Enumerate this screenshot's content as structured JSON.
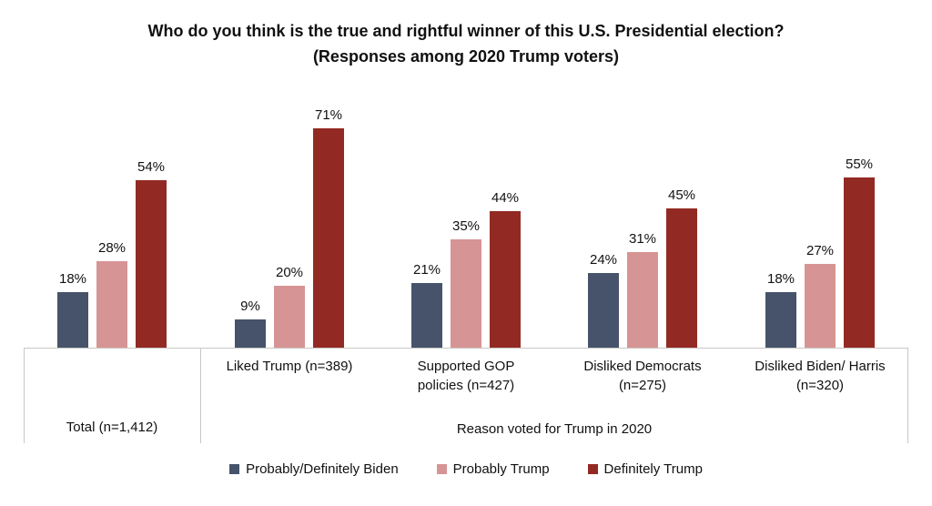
{
  "chart_data": {
    "type": "bar",
    "title": "Who do you think is the true and rightful winner of this U.S. Presidential election? (Responses among 2020 Trump voters)",
    "categories": [
      "Total (n=1,412)",
      "Liked Trump (n=389)",
      "Supported GOP policies (n=427)",
      "Disliked Democrats (n=275)",
      "Disliked Biden/ Harris (n=320)"
    ],
    "series": [
      {
        "name": "Probably/Definitely Biden",
        "color": "#46536A",
        "values": [
          18,
          9,
          21,
          24,
          18
        ]
      },
      {
        "name": "Probably Trump",
        "color": "#D79494",
        "values": [
          28,
          20,
          35,
          31,
          27
        ]
      },
      {
        "name": "Definitely Trump",
        "color": "#922A23",
        "values": [
          54,
          71,
          44,
          45,
          55
        ]
      }
    ],
    "value_label_suffix": "%",
    "outer_axis_label": "Reason voted for Trump in 2020",
    "outer_axis_span_categories": [
      "Liked Trump (n=389)",
      "Supported GOP policies (n=427)",
      "Disliked Democrats (n=275)",
      "Disliked Biden/ Harris (n=320)"
    ],
    "ylim": [
      0,
      100
    ],
    "grid": false,
    "legend_position": "bottom",
    "colors": {
      "axis_line": "#C9C7C5",
      "text": "#111111",
      "background": "#FFFFFF"
    }
  }
}
